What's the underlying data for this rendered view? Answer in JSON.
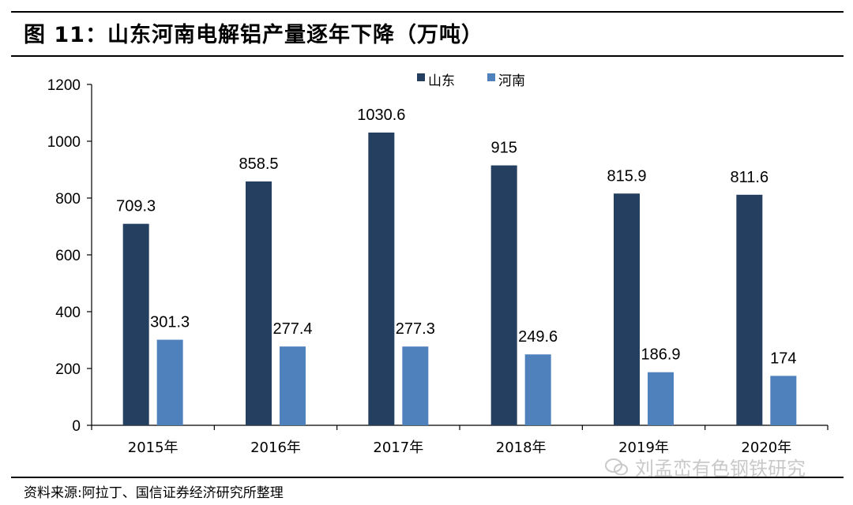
{
  "header": {
    "title": "图 11：山东河南电解铝产量逐年下降（万吨）"
  },
  "footer": {
    "source": "资料来源:阿拉丁、国信证券经济研究所整理",
    "watermark": "刘孟峦有色钢铁研究"
  },
  "colors": {
    "shandong": "#243F60",
    "henan": "#4F81BD"
  },
  "chart_data": {
    "type": "bar",
    "categories": [
      "2015年",
      "2016年",
      "2017年",
      "2018年",
      "2019年",
      "2020年"
    ],
    "series": [
      {
        "name": "山东",
        "values": [
          709.3,
          858.5,
          1030.6,
          915,
          815.9,
          811.6
        ],
        "labels": [
          "709.3",
          "858.5",
          "1030.6",
          "915",
          "815.9",
          "811.6"
        ]
      },
      {
        "name": "河南",
        "values": [
          301.3,
          277.4,
          277.3,
          249.6,
          186.9,
          174
        ],
        "labels": [
          "301.3",
          "277.4",
          "277.3",
          "249.6",
          "186.9",
          "174"
        ]
      }
    ],
    "ylim": [
      0,
      1200
    ],
    "yticks": [
      0,
      200,
      400,
      600,
      800,
      1000,
      1200
    ],
    "xlabel": "",
    "ylabel": "",
    "legend_position": "top-center",
    "grid": false
  }
}
